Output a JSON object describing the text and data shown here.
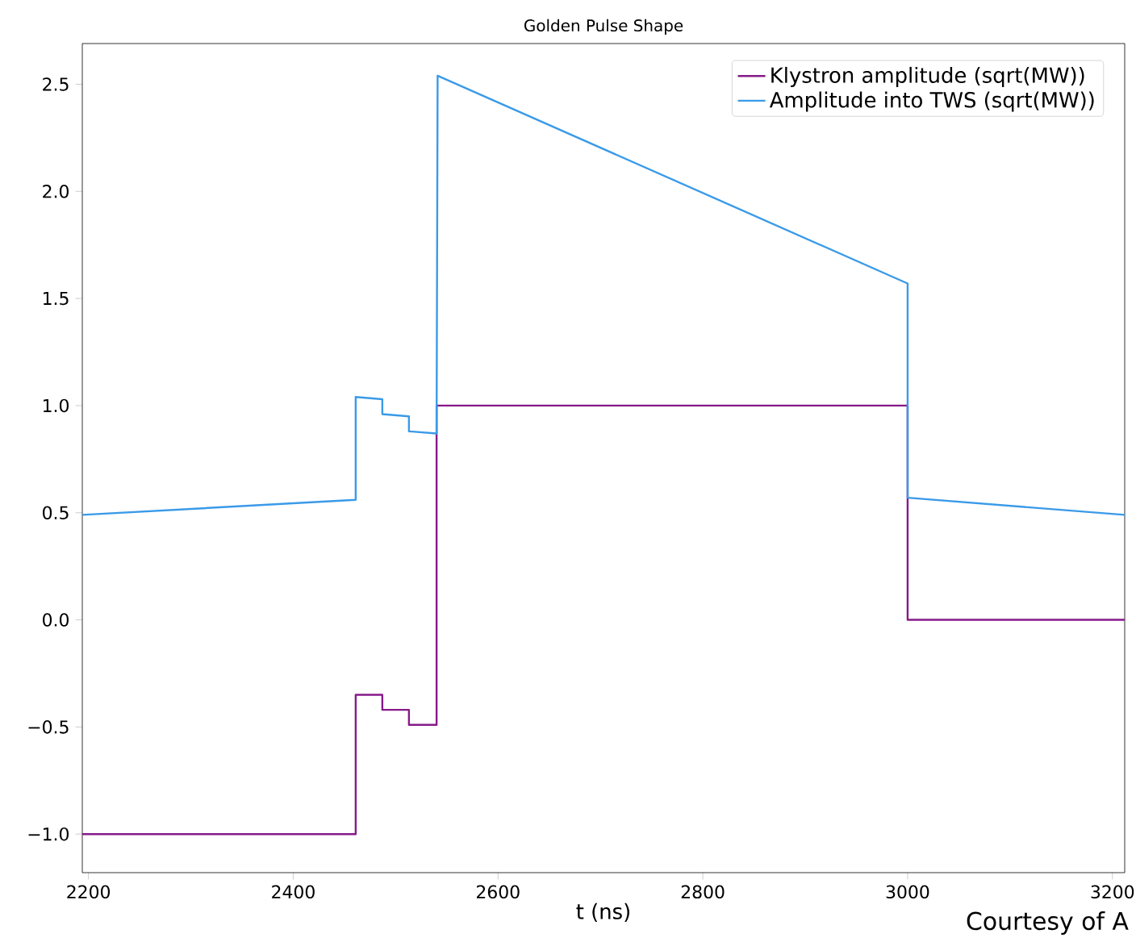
{
  "chart_data": {
    "type": "line",
    "title": "Golden Pulse Shape",
    "xlabel": "t (ns)",
    "xlim": [
      2194,
      3212
    ],
    "ylim": [
      -1.18,
      2.69
    ],
    "xticks": [
      2200,
      2400,
      2600,
      2800,
      3000,
      3200
    ],
    "yticks": [
      {
        "value": -1.0,
        "label": "−1.0"
      },
      {
        "value": -0.5,
        "label": "−0.5"
      },
      {
        "value": 0.0,
        "label": "0.0"
      },
      {
        "value": 0.5,
        "label": "0.5"
      },
      {
        "value": 1.0,
        "label": "1.0"
      },
      {
        "value": 1.5,
        "label": "1.5"
      },
      {
        "value": 2.0,
        "label": "2.0"
      },
      {
        "value": 2.5,
        "label": "2.5"
      }
    ],
    "grid": false,
    "legend": "top right",
    "annotations": [
      "Courtesy of A"
    ],
    "series": [
      {
        "name": "Klystron amplitude (sqrt(MW))",
        "color": "#861a8a",
        "x": [
          2194,
          2461,
          2461,
          2487,
          2487,
          2513,
          2513,
          2540,
          2540,
          3000,
          3000,
          3212
        ],
        "values": [
          -1.0,
          -1.0,
          -0.35,
          -0.35,
          -0.42,
          -0.42,
          -0.49,
          -0.49,
          1.0,
          1.0,
          0.0,
          0.0
        ]
      },
      {
        "name": "Amplitude into TWS (sqrt(MW))",
        "color": "#3a9ae8",
        "x": [
          2194,
          2461,
          2461,
          2487,
          2487,
          2513,
          2513,
          2540,
          2541,
          3000,
          3000,
          3212
        ],
        "values": [
          0.49,
          0.56,
          1.04,
          1.03,
          0.96,
          0.95,
          0.88,
          0.87,
          2.54,
          1.57,
          0.57,
          0.49
        ]
      }
    ]
  }
}
